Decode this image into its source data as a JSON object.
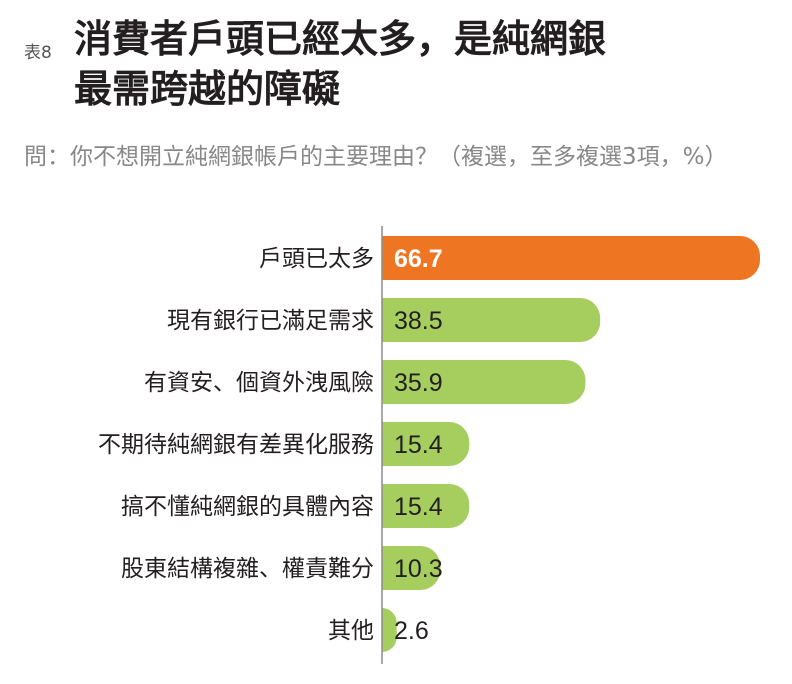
{
  "header": {
    "table_no": "表8",
    "title_line1": "消費者戶頭已經太多，是純網銀",
    "title_line2": "最需跨越的障礙",
    "question": "問：你不想開立純網銀帳戶的主要理由？（複選，至多複選3項，%）"
  },
  "colors": {
    "highlight": "#ee7522",
    "bar": "#a6ce5f",
    "axis": "#8c8c8c"
  },
  "chart_data": {
    "type": "bar",
    "orientation": "horizontal",
    "categories": [
      "戶頭已太多",
      "現有銀行已滿足需求",
      "有資安、個資外洩風險",
      "不期待純網銀有差異化服務",
      "搞不懂純網銀的具體內容",
      "股東結構複雜、權責難分",
      "其他"
    ],
    "values": [
      66.7,
      38.5,
      35.9,
      15.4,
      15.4,
      10.3,
      2.6
    ],
    "value_labels": [
      "66.7",
      "38.5",
      "35.9",
      "15.4",
      "15.4",
      "10.3",
      "2.6"
    ],
    "highlight_index": 0,
    "xlim": [
      0,
      66.7
    ],
    "grid": false,
    "title": "",
    "xlabel": "",
    "ylabel": ""
  }
}
